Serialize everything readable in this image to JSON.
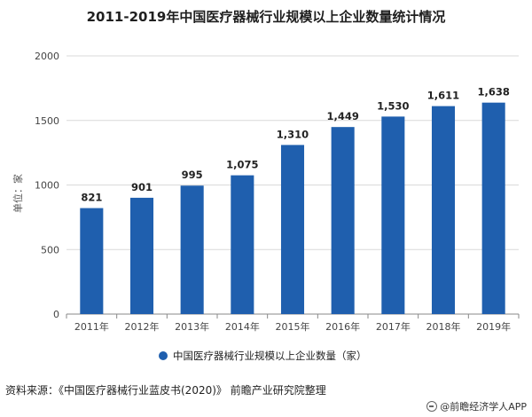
{
  "chart_data": {
    "type": "bar",
    "title": "2011-2019年中国医疗器械行业规模以上企业数量统计情况",
    "xlabel": "",
    "ylabel": "单位：家",
    "categories": [
      "2011年",
      "2012年",
      "2013年",
      "2014年",
      "2015年",
      "2016年",
      "2017年",
      "2018年",
      "2019年"
    ],
    "series": [
      {
        "name": "中国医疗器械行业规模以上企业数量（家）",
        "values": [
          821,
          901,
          995,
          1075,
          1310,
          1449,
          1530,
          1611,
          1638
        ],
        "labels": [
          "821",
          "901",
          "995",
          "1,075",
          "1,310",
          "1,449",
          "1,530",
          "1,611",
          "1,638"
        ]
      }
    ],
    "ylim": [
      0,
      2000
    ],
    "yticks": [
      "0",
      "500",
      "1000",
      "1500",
      "2000"
    ],
    "ytick_values": [
      0,
      500,
      1000,
      1500,
      2000
    ],
    "grid": true,
    "legend_position": "bottom",
    "bar_color": "#1f5fae"
  },
  "footer": {
    "source": "资料来源：《中国医疗器械行业蓝皮书(2020)》 前瞻产业研究院整理",
    "brand": "@前瞻经济学人APP"
  }
}
